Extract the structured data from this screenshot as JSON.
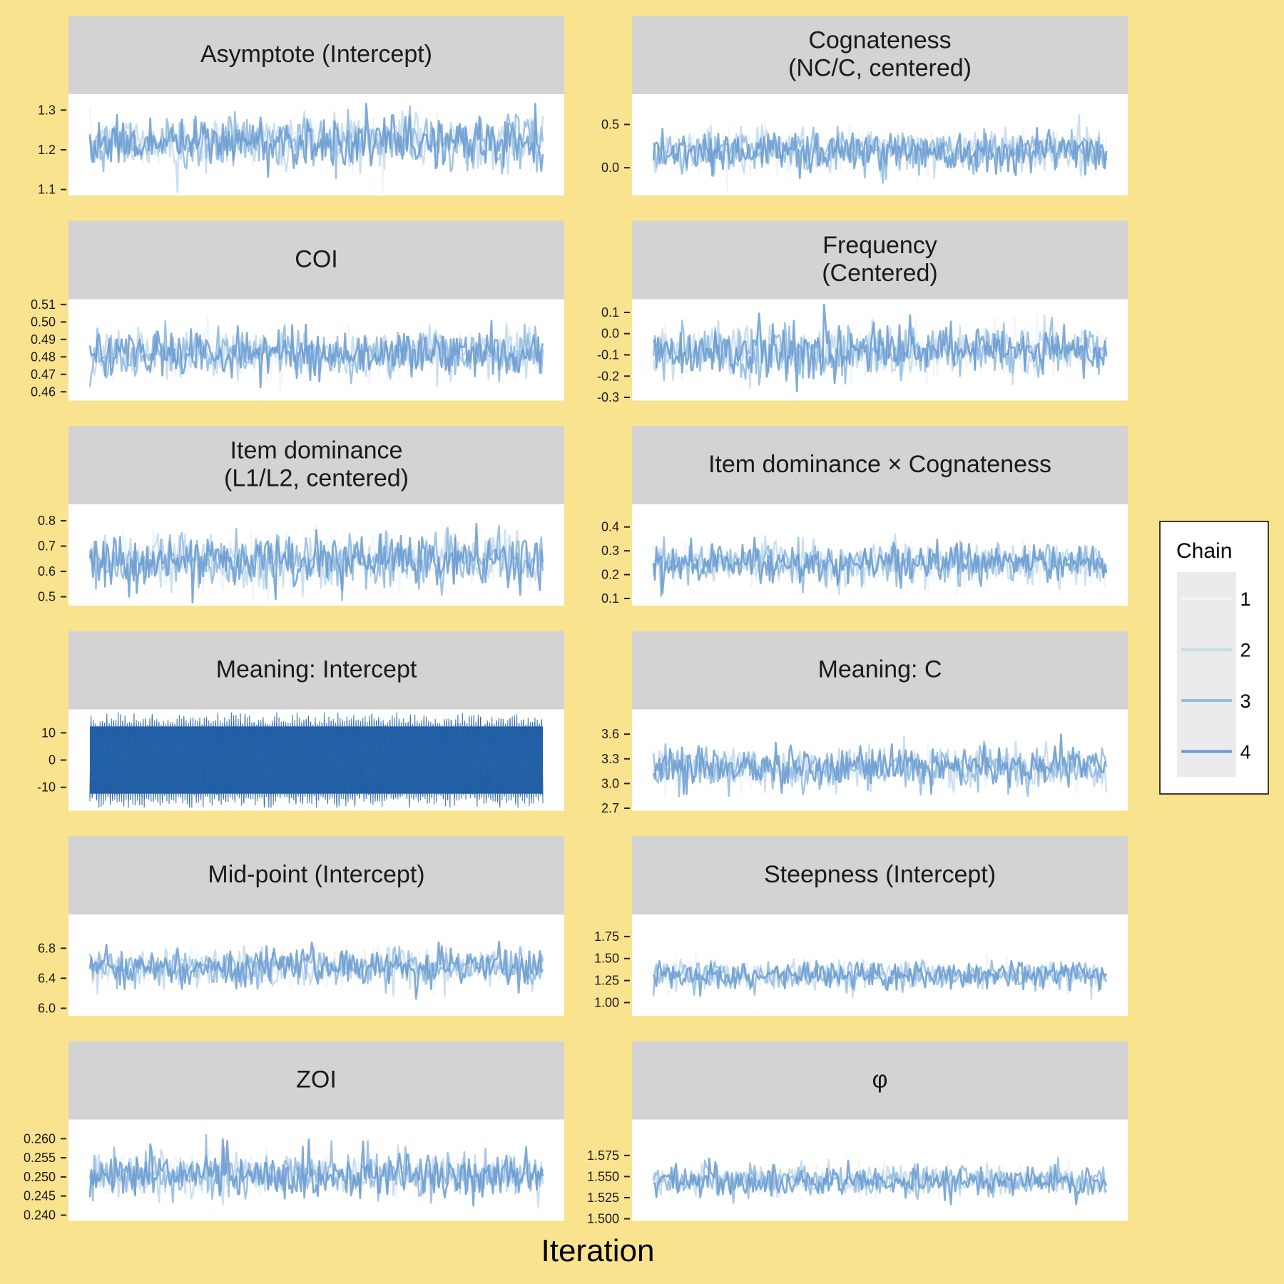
{
  "figure": {
    "xlabel": "Iteration",
    "background_color": "#fae38f",
    "strip_color": "#d3d3d3",
    "legend": {
      "title": "Chain",
      "placement": "right",
      "chains": [
        {
          "label": "1",
          "color": "#f1f5fa"
        },
        {
          "label": "2",
          "color": "#c7dcef"
        },
        {
          "label": "3",
          "color": "#94bde0"
        },
        {
          "label": "4",
          "color": "#6a9bd0"
        }
      ]
    }
  },
  "chart_data": [
    {
      "type": "line",
      "title": [
        "Asymptote (Intercept)"
      ],
      "yticks": [
        "1.3",
        "1.2",
        "1.1"
      ],
      "ylim": [
        1.1,
        1.3
      ],
      "yrange": [
        1.085,
        1.34
      ],
      "center": 1.22,
      "spread": 0.032
    },
    {
      "type": "line",
      "title": [
        "Cognateness",
        "(NC/C, centered)"
      ],
      "yticks": [
        "0.5",
        "0.0"
      ],
      "ylim": [
        0.0,
        0.5
      ],
      "yrange": [
        -0.32,
        0.85
      ],
      "center": 0.2,
      "spread": 0.12
    },
    {
      "type": "line",
      "title": [
        "COI"
      ],
      "yticks": [
        "0.51",
        "0.50",
        "0.49",
        "0.48",
        "0.47",
        "0.46"
      ],
      "ylim": [
        0.46,
        0.51
      ],
      "yrange": [
        0.455,
        0.513
      ],
      "center": 0.482,
      "spread": 0.0065
    },
    {
      "type": "line",
      "title": [
        "Frequency",
        "(Centered)"
      ],
      "yticks": [
        "0.1",
        "0.0",
        "-0.1",
        "-0.2",
        "-0.3"
      ],
      "ylim": [
        -0.3,
        0.1
      ],
      "yrange": [
        -0.315,
        0.162
      ],
      "center": -0.08,
      "spread": 0.06
    },
    {
      "type": "line",
      "title": [
        "Item dominance",
        "(L1/L2, centered)"
      ],
      "yticks": [
        "0.8",
        "0.7",
        "0.6",
        "0.5"
      ],
      "ylim": [
        0.5,
        0.8
      ],
      "yrange": [
        0.465,
        0.865
      ],
      "center": 0.64,
      "spread": 0.05
    },
    {
      "type": "line",
      "title": [
        "Item dominance × Cognateness"
      ],
      "yticks": [
        "0.4",
        "0.3",
        "0.2",
        "0.1"
      ],
      "ylim": [
        0.1,
        0.4
      ],
      "yrange": [
        0.07,
        0.495
      ],
      "center": 0.25,
      "spread": 0.04
    },
    {
      "type": "line",
      "title": [
        "Meaning: Intercept"
      ],
      "yticks": [
        "10",
        "0",
        "-10"
      ],
      "ylim": [
        -10,
        10
      ],
      "yrange": [
        -18.6,
        18.6
      ],
      "center": 0,
      "spread": 6.5,
      "dense": true
    },
    {
      "type": "line",
      "title": [
        "Meaning: C"
      ],
      "yticks": [
        "3.6",
        "3.3",
        "3.0",
        "2.7"
      ],
      "ylim": [
        2.7,
        3.6
      ],
      "yrange": [
        2.67,
        3.9
      ],
      "center": 3.2,
      "spread": 0.12
    },
    {
      "type": "line",
      "title": [
        "Mid-point (Intercept)"
      ],
      "yticks": [
        "6.8",
        "6.4",
        "6.0"
      ],
      "ylim": [
        6.0,
        6.8
      ],
      "yrange": [
        5.9,
        7.25
      ],
      "center": 6.55,
      "spread": 0.12
    },
    {
      "type": "line",
      "title": [
        "Steepness (Intercept)"
      ],
      "yticks": [
        "1.75",
        "1.50",
        "1.25",
        "1.00"
      ],
      "ylim": [
        1.0,
        1.75
      ],
      "yrange": [
        0.85,
        2.0
      ],
      "center": 1.31,
      "spread": 0.08
    },
    {
      "type": "line",
      "title": [
        "ZOI"
      ],
      "yticks": [
        "0.260",
        "0.255",
        "0.250",
        "0.245",
        "0.240"
      ],
      "ylim": [
        0.24,
        0.26
      ],
      "yrange": [
        0.2385,
        0.265
      ],
      "center": 0.2505,
      "spread": 0.0028
    },
    {
      "type": "line",
      "title": [
        "φ"
      ],
      "yticks": [
        "1.575",
        "1.550",
        "1.525",
        "1.500"
      ],
      "ylim": [
        1.5,
        1.575
      ],
      "yrange": [
        1.4975,
        1.6175
      ],
      "center": 1.545,
      "spread": 0.0085
    }
  ]
}
